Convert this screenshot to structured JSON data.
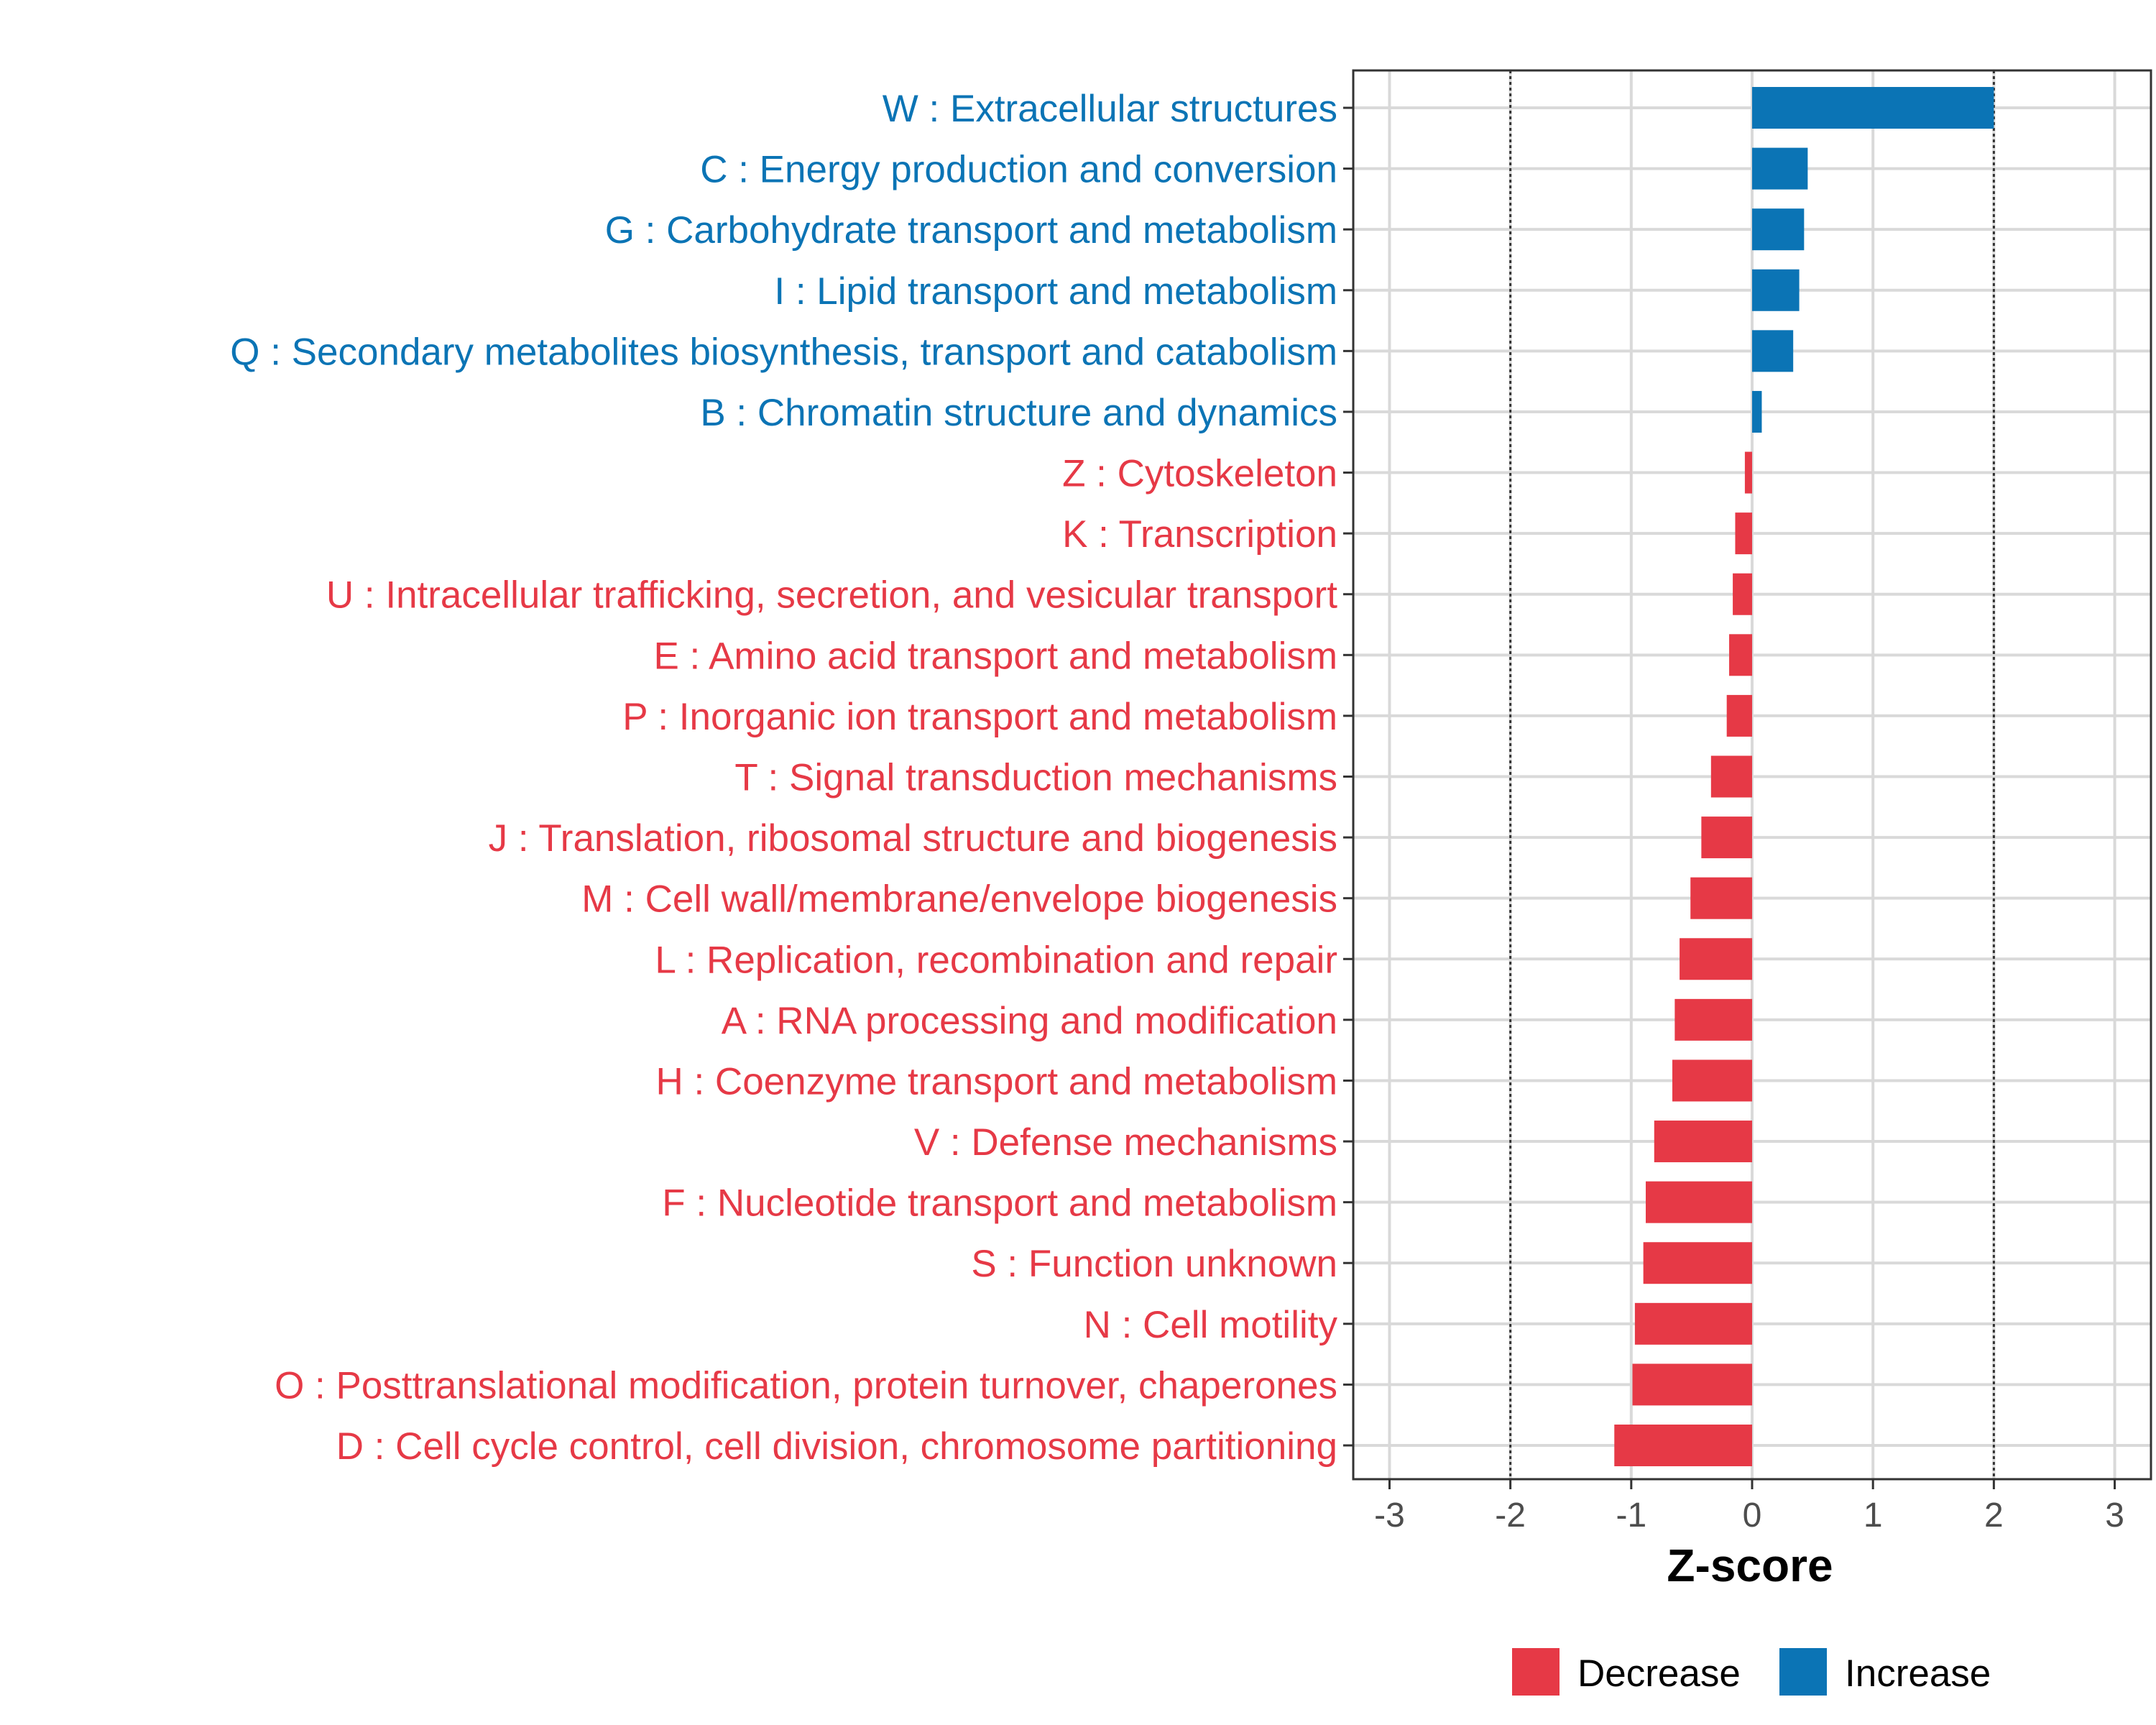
{
  "chart_data": {
    "type": "bar",
    "orientation": "horizontal",
    "xlabel": "Z-score",
    "ylabel": "",
    "xlim": [
      -3.3,
      3.3
    ],
    "xticks": [
      -3,
      -2,
      -1,
      0,
      1,
      2,
      3
    ],
    "xtick_labels": [
      "-3",
      "-2",
      "-1",
      "0",
      "1",
      "2",
      "3"
    ],
    "reference_lines": [
      -2,
      2
    ],
    "grid": true,
    "colors": {
      "Decrease": "#E63946",
      "Increase": "#0B74B5"
    },
    "legend": {
      "position": "bottom-right",
      "entries": [
        "Decrease",
        "Increase"
      ]
    },
    "categories": [
      "W : Extracellular structures",
      "C : Energy production and conversion",
      "G : Carbohydrate transport and metabolism",
      "I : Lipid transport and metabolism",
      "Q : Secondary metabolites biosynthesis, transport and catabolism",
      "B : Chromatin structure and dynamics",
      "Z : Cytoskeleton",
      "K : Transcription",
      "U : Intracellular trafficking, secretion, and vesicular transport",
      "E : Amino acid transport and metabolism",
      "P : Inorganic ion transport and metabolism",
      "T : Signal transduction mechanisms",
      "J : Translation, ribosomal structure and biogenesis",
      "M : Cell wall/membrane/envelope biogenesis",
      "L : Replication, recombination and repair",
      "A : RNA processing and modification",
      "H : Coenzyme transport and metabolism",
      "V : Defense mechanisms",
      "F : Nucleotide transport and metabolism",
      "S : Function unknown",
      "N : Cell motility",
      "O : Posttranslational modification, protein turnover, chaperones",
      "D : Cell cycle control, cell division, chromosome partitioning"
    ],
    "values": [
      2.0,
      0.46,
      0.43,
      0.39,
      0.34,
      0.08,
      -0.06,
      -0.14,
      -0.16,
      -0.19,
      -0.21,
      -0.34,
      -0.42,
      -0.51,
      -0.6,
      -0.64,
      -0.66,
      -0.81,
      -0.88,
      -0.9,
      -0.97,
      -0.99,
      -1.14
    ],
    "groups": [
      "Increase",
      "Increase",
      "Increase",
      "Increase",
      "Increase",
      "Increase",
      "Decrease",
      "Decrease",
      "Decrease",
      "Decrease",
      "Decrease",
      "Decrease",
      "Decrease",
      "Decrease",
      "Decrease",
      "Decrease",
      "Decrease",
      "Decrease",
      "Decrease",
      "Decrease",
      "Decrease",
      "Decrease",
      "Decrease"
    ]
  }
}
